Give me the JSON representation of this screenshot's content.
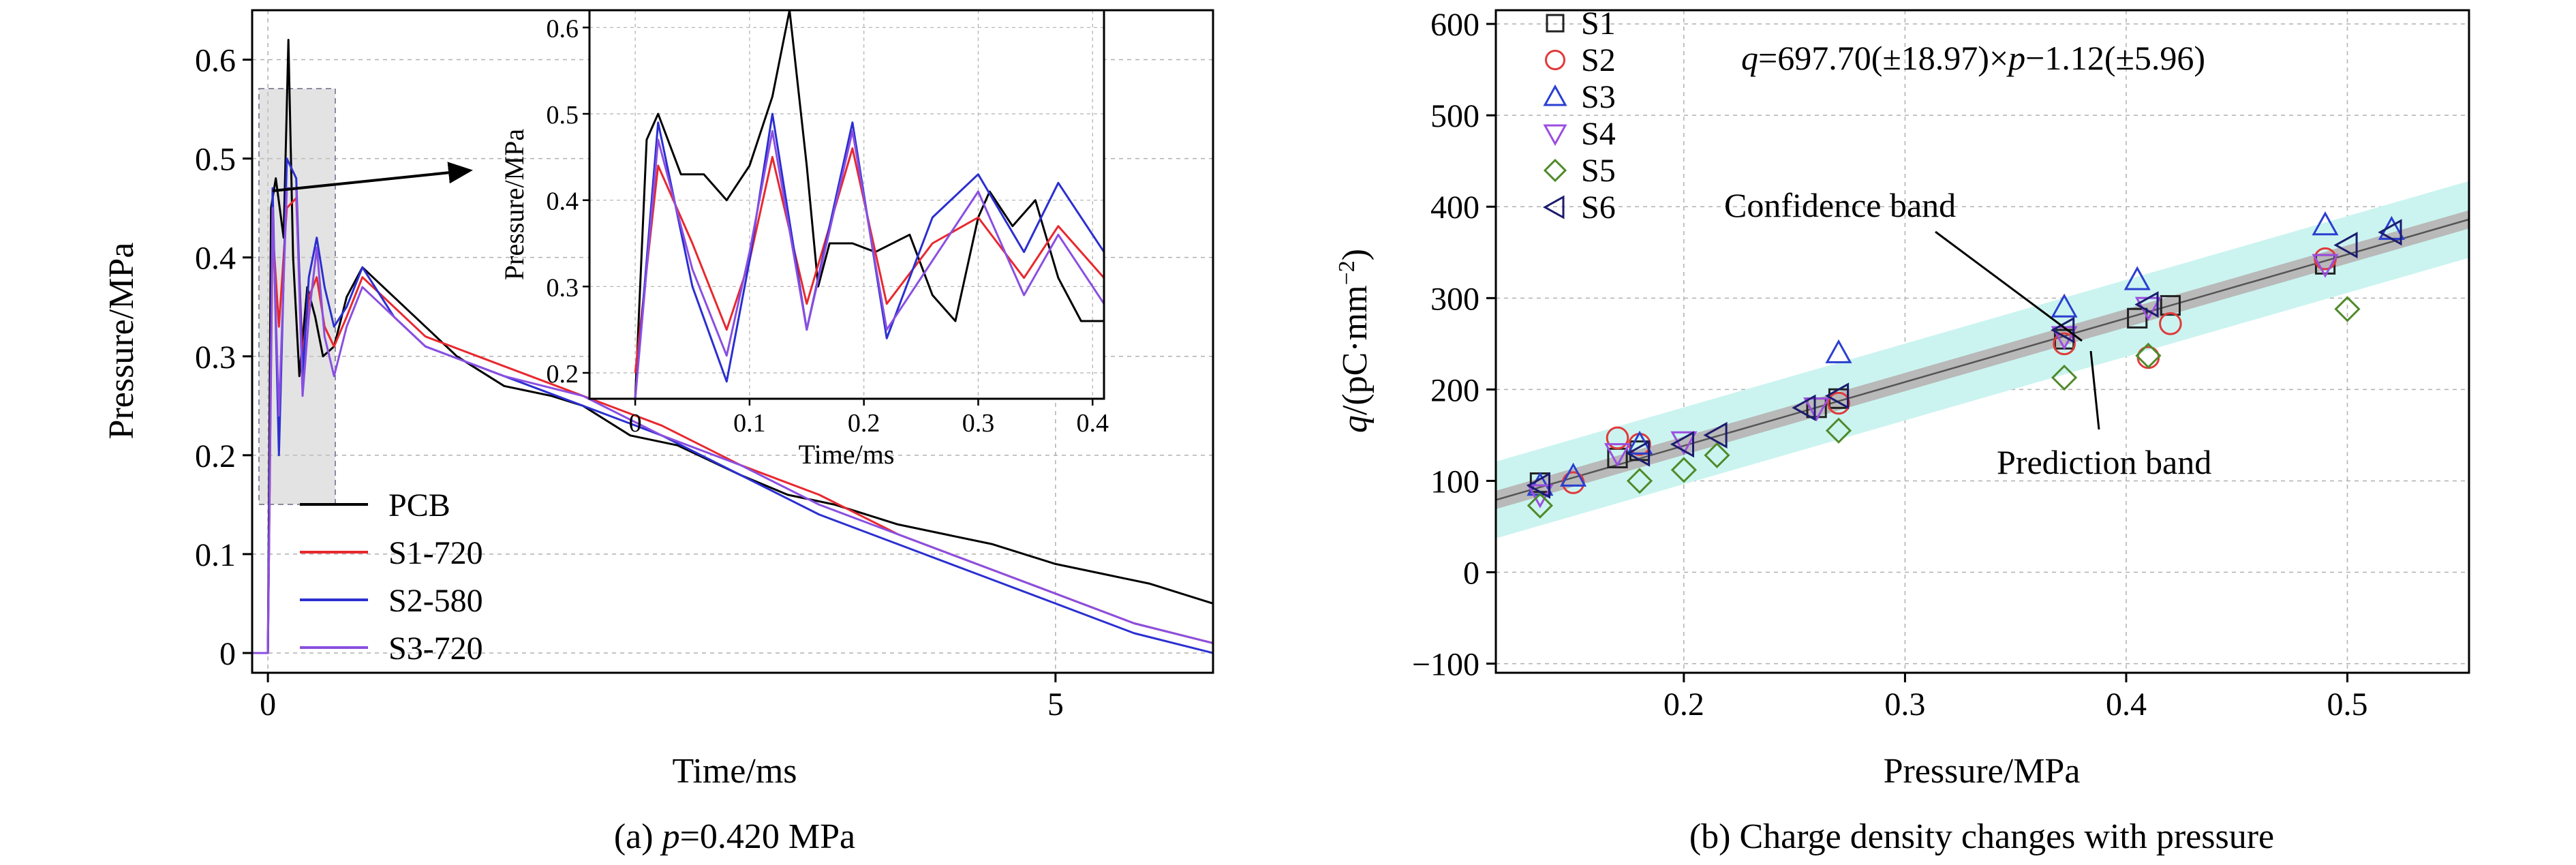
{
  "chart_data": [
    {
      "type": "line",
      "panel_caption_prefix": "(a) ",
      "panel_caption_var": "p",
      "panel_caption_rest": "=0.420 MPa",
      "xlabel": "Time/ms",
      "ylabel": "Pressure/MPa",
      "xlim": [
        -0.1,
        6.0
      ],
      "ylim": [
        -0.02,
        0.65
      ],
      "xticks": [
        0,
        5
      ],
      "xtick_labels": [
        "0",
        "5"
      ],
      "yticks": [
        0,
        0.1,
        0.2,
        0.3,
        0.4,
        0.5,
        0.6
      ],
      "ytick_labels": [
        "0",
        "0.1",
        "0.2",
        "0.3",
        "0.4",
        "0.5",
        "0.6"
      ],
      "grid": true,
      "legend_position": "bottom-left",
      "series": [
        {
          "name": "PCB",
          "color": "#000000",
          "x": [
            -0.1,
            0.0,
            0.02,
            0.05,
            0.1,
            0.13,
            0.16,
            0.2,
            0.25,
            0.3,
            0.35,
            0.42,
            0.5,
            0.6,
            0.8,
            1.0,
            1.2,
            1.5,
            1.8,
            2.0,
            2.3,
            2.6,
            3.0,
            3.3,
            3.6,
            4.0,
            4.3,
            4.6,
            5.0,
            5.3,
            5.6,
            6.0
          ],
          "y": [
            0.0,
            0.0,
            0.45,
            0.48,
            0.42,
            0.62,
            0.4,
            0.28,
            0.37,
            0.34,
            0.3,
            0.31,
            0.36,
            0.39,
            0.36,
            0.33,
            0.3,
            0.27,
            0.26,
            0.25,
            0.22,
            0.21,
            0.18,
            0.16,
            0.15,
            0.13,
            0.12,
            0.11,
            0.09,
            0.08,
            0.07,
            0.05
          ]
        },
        {
          "name": "S1-720",
          "color": "#e8282e",
          "x": [
            -0.1,
            0.0,
            0.03,
            0.07,
            0.12,
            0.18,
            0.22,
            0.26,
            0.31,
            0.36,
            0.42,
            0.5,
            0.6,
            0.8,
            1.0,
            1.5,
            2.0,
            2.5,
            3.0,
            3.5,
            4.0,
            4.5,
            5.0,
            5.5,
            6.0
          ],
          "y": [
            0.0,
            0.0,
            0.43,
            0.33,
            0.45,
            0.46,
            0.3,
            0.36,
            0.38,
            0.33,
            0.31,
            0.34,
            0.38,
            0.35,
            0.32,
            0.29,
            0.26,
            0.23,
            0.19,
            0.16,
            0.12,
            0.09,
            0.06,
            0.03,
            0.01
          ]
        },
        {
          "name": "S2-580",
          "color": "#2b2fd0",
          "x": [
            -0.1,
            0.0,
            0.03,
            0.07,
            0.12,
            0.18,
            0.22,
            0.26,
            0.31,
            0.36,
            0.42,
            0.5,
            0.6,
            0.8,
            1.0,
            1.5,
            2.0,
            2.5,
            3.0,
            3.5,
            4.0,
            4.5,
            5.0,
            5.5,
            6.0
          ],
          "y": [
            0.0,
            0.0,
            0.47,
            0.2,
            0.5,
            0.48,
            0.28,
            0.38,
            0.42,
            0.37,
            0.33,
            0.35,
            0.39,
            0.34,
            0.31,
            0.28,
            0.25,
            0.22,
            0.18,
            0.14,
            0.11,
            0.08,
            0.05,
            0.02,
            0.0
          ]
        },
        {
          "name": "S3-720",
          "color": "#8a4fe0",
          "x": [
            -0.1,
            0.0,
            0.03,
            0.07,
            0.12,
            0.18,
            0.22,
            0.26,
            0.31,
            0.36,
            0.42,
            0.5,
            0.6,
            0.8,
            1.0,
            1.5,
            2.0,
            2.5,
            3.0,
            3.5,
            4.0,
            4.5,
            5.0,
            5.5,
            6.0
          ],
          "y": [
            0.0,
            0.0,
            0.45,
            0.24,
            0.47,
            0.47,
            0.26,
            0.34,
            0.41,
            0.32,
            0.28,
            0.33,
            0.37,
            0.34,
            0.31,
            0.28,
            0.26,
            0.22,
            0.19,
            0.15,
            0.12,
            0.09,
            0.06,
            0.03,
            0.01
          ]
        }
      ],
      "inset": {
        "xlabel": "Time/ms",
        "ylabel": "Pressure/MPa",
        "xlim": [
          -0.04,
          0.41
        ],
        "ylim": [
          0.17,
          0.62
        ],
        "xticks": [
          0,
          0.1,
          0.2,
          0.3,
          0.4
        ],
        "xtick_labels": [
          "0",
          "0.1",
          "0.2",
          "0.3",
          "0.4"
        ],
        "yticks": [
          0.2,
          0.3,
          0.4,
          0.5,
          0.6
        ],
        "ytick_labels": [
          "0.2",
          "0.3",
          "0.4",
          "0.5",
          "0.6"
        ],
        "series": [
          {
            "name": "PCB",
            "x": [
              0.0,
              0.01,
              0.02,
              0.04,
              0.06,
              0.08,
              0.1,
              0.12,
              0.135,
              0.15,
              0.16,
              0.17,
              0.19,
              0.21,
              0.24,
              0.26,
              0.28,
              0.3,
              0.31,
              0.33,
              0.35,
              0.37,
              0.39,
              0.41
            ],
            "y": [
              0.17,
              0.47,
              0.5,
              0.43,
              0.43,
              0.4,
              0.44,
              0.52,
              0.62,
              0.44,
              0.3,
              0.35,
              0.35,
              0.34,
              0.36,
              0.29,
              0.26,
              0.38,
              0.41,
              0.37,
              0.4,
              0.31,
              0.26,
              0.26
            ]
          },
          {
            "name": "S1-720",
            "x": [
              0.0,
              0.02,
              0.05,
              0.08,
              0.1,
              0.12,
              0.15,
              0.19,
              0.22,
              0.26,
              0.3,
              0.34,
              0.37,
              0.41
            ],
            "y": [
              0.2,
              0.44,
              0.35,
              0.25,
              0.33,
              0.45,
              0.28,
              0.46,
              0.28,
              0.35,
              0.38,
              0.31,
              0.37,
              0.31
            ]
          },
          {
            "name": "S2-580",
            "x": [
              0.0,
              0.02,
              0.05,
              0.08,
              0.1,
              0.12,
              0.15,
              0.19,
              0.22,
              0.26,
              0.3,
              0.34,
              0.37,
              0.41
            ],
            "y": [
              0.17,
              0.49,
              0.3,
              0.19,
              0.33,
              0.5,
              0.25,
              0.49,
              0.24,
              0.38,
              0.43,
              0.34,
              0.42,
              0.34
            ]
          },
          {
            "name": "S3-720",
            "x": [
              0.0,
              0.02,
              0.05,
              0.08,
              0.1,
              0.12,
              0.15,
              0.19,
              0.22,
              0.26,
              0.3,
              0.34,
              0.37,
              0.41
            ],
            "y": [
              0.17,
              0.47,
              0.32,
              0.22,
              0.34,
              0.48,
              0.25,
              0.48,
              0.25,
              0.33,
              0.41,
              0.29,
              0.36,
              0.28
            ]
          }
        ]
      }
    },
    {
      "type": "scatter",
      "panel_caption": "(b) Charge density changes with pressure",
      "xlabel": "Pressure/MPa",
      "ylabel_var": "q",
      "ylabel_rest": "/(pC·mm",
      "ylabel_sup": "−2",
      "ylabel_close": ")",
      "xlim": [
        0.115,
        0.555
      ],
      "ylim": [
        -110,
        615
      ],
      "xticks": [
        0.2,
        0.3,
        0.4,
        0.5
      ],
      "xtick_labels": [
        "0.2",
        "0.3",
        "0.4",
        "0.5"
      ],
      "yticks": [
        -100,
        0,
        100,
        200,
        300,
        400,
        500,
        600
      ],
      "ytick_labels": [
        "−100",
        "0",
        "100",
        "200",
        "300",
        "400",
        "500",
        "600"
      ],
      "grid": true,
      "legend_position": "top-left",
      "equation": {
        "q": "q",
        "mid": "=697.70(±18.97)×",
        "p": "p",
        "tail": "−1.12(±5.96)"
      },
      "fit": {
        "slope": 697.7,
        "intercept": -1.12
      },
      "annotations": [
        "Confidence band",
        "Prediction band"
      ],
      "series": [
        {
          "name": "S1",
          "marker": "square",
          "color": "#222222",
          "x": [
            0.135,
            0.17,
            0.18,
            0.26,
            0.27,
            0.372,
            0.405,
            0.42,
            0.49
          ],
          "y": [
            98,
            125,
            133,
            180,
            190,
            255,
            278,
            292,
            337
          ]
        },
        {
          "name": "S2",
          "marker": "circle",
          "color": "#e03a3a",
          "x": [
            0.15,
            0.17,
            0.18,
            0.27,
            0.372,
            0.41,
            0.42,
            0.49
          ],
          "y": [
            98,
            147,
            140,
            185,
            250,
            235,
            272,
            343
          ]
        },
        {
          "name": "S3",
          "marker": "triangle-up",
          "color": "#2a3fd0",
          "x": [
            0.135,
            0.15,
            0.18,
            0.27,
            0.372,
            0.405,
            0.49,
            0.52
          ],
          "y": [
            95,
            105,
            140,
            240,
            290,
            320,
            380,
            375
          ]
        },
        {
          "name": "S4",
          "marker": "triangle-down",
          "color": "#9b4ee0",
          "x": [
            0.135,
            0.17,
            0.2,
            0.26,
            0.372,
            0.41,
            0.49
          ],
          "y": [
            85,
            130,
            143,
            180,
            258,
            290,
            337
          ]
        },
        {
          "name": "S5",
          "marker": "diamond",
          "color": "#4f8a2a",
          "x": [
            0.135,
            0.18,
            0.2,
            0.215,
            0.27,
            0.372,
            0.41,
            0.5
          ],
          "y": [
            73,
            100,
            112,
            128,
            155,
            213,
            237,
            288
          ]
        },
        {
          "name": "S6",
          "marker": "triangle-left",
          "color": "#1c1c6e",
          "x": [
            0.135,
            0.18,
            0.2,
            0.215,
            0.255,
            0.27,
            0.372,
            0.41,
            0.5,
            0.52
          ],
          "y": [
            95,
            130,
            140,
            150,
            180,
            193,
            265,
            293,
            358,
            372
          ]
        }
      ]
    }
  ]
}
